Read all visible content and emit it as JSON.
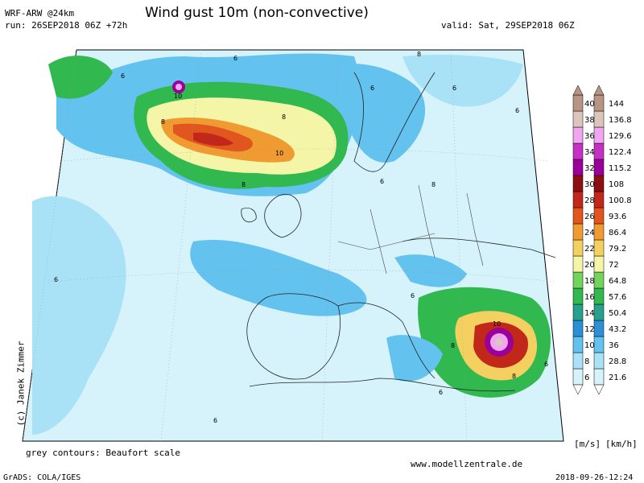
{
  "header": {
    "title": "Wind gust 10m (non-convective)",
    "model": "WRF-ARW @24km",
    "run": "run: 26SEP2018 06Z +72h",
    "valid": "valid: Sat, 29SEP2018 06Z"
  },
  "footer": {
    "beaufort_note": "grey contours: Beaufort scale",
    "website": "www.modellzentrale.de",
    "grads": "GrADS: COLA/IGES",
    "timestamp": "2018-09-26-12:24",
    "copyright": "(c) Janek Zimmer"
  },
  "colorbar": {
    "unit_ms": "[m/s]",
    "unit_kmh": "[km/h]",
    "levels_ms": [
      "6",
      "8",
      "10",
      "12",
      "14",
      "16",
      "18",
      "20",
      "22",
      "24",
      "26",
      "28",
      "30",
      "32",
      "34",
      "36",
      "38",
      "40"
    ],
    "levels_kmh": [
      "21.6",
      "28.8",
      "36",
      "43.2",
      "50.4",
      "57.6",
      "64.8",
      "72",
      "79.2",
      "86.4",
      "93.6",
      "100.8",
      "108",
      "115.2",
      "122.4",
      "129.6",
      "136.8",
      "144"
    ],
    "colors": [
      "#d6f2fb",
      "#a9e2f6",
      "#63c2ee",
      "#2d8fd6",
      "#27a08c",
      "#31b84e",
      "#74d35a",
      "#f5f5a8",
      "#f4d060",
      "#f09a32",
      "#e0561e",
      "#c2281a",
      "#8c0f12",
      "#9a0099",
      "#c431c4",
      "#f1a6f1",
      "#dcc6bb",
      "#b89484"
    ]
  },
  "map": {
    "background": "#ffffff",
    "beaufort_labels": [
      "6",
      "8",
      "10",
      "6",
      "8",
      "10",
      "8",
      "6",
      "6",
      "6",
      "8",
      "6",
      "8",
      "10",
      "8",
      "6",
      "6",
      "8",
      "6",
      "6",
      "6"
    ]
  }
}
